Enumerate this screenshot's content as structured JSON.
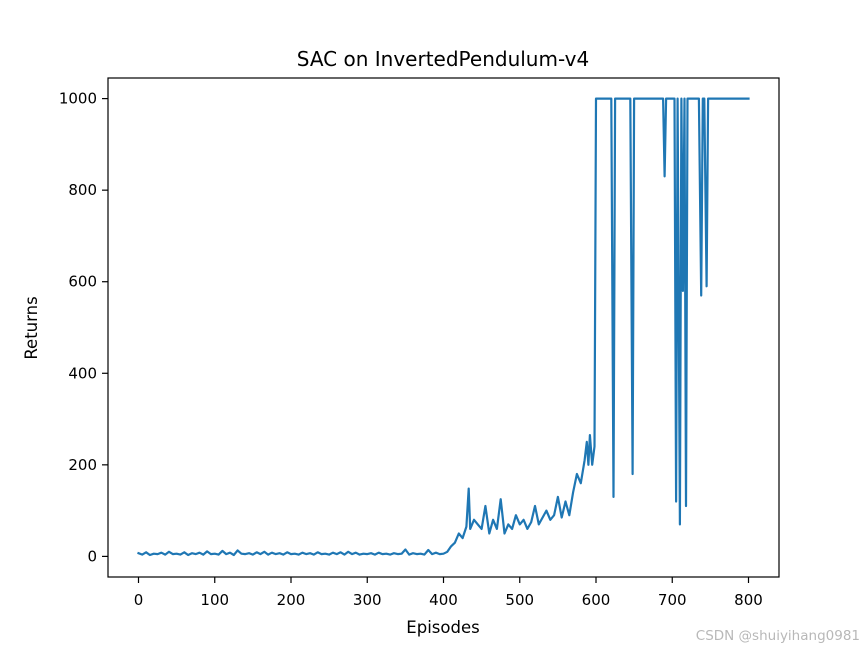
{
  "chart_data": {
    "type": "line",
    "title": "SAC on InvertedPendulum-v4",
    "xlabel": "Episodes",
    "ylabel": "Returns",
    "xlim": [
      -40,
      840
    ],
    "ylim": [
      -45,
      1045
    ],
    "xticks": [
      0,
      100,
      200,
      300,
      400,
      500,
      600,
      700,
      800
    ],
    "yticks": [
      0,
      200,
      400,
      600,
      800,
      1000
    ],
    "grid": false,
    "legend": null,
    "line_color": "#1f77b4",
    "series": [
      {
        "x": [
          0,
          5,
          10,
          15,
          20,
          25,
          30,
          35,
          40,
          45,
          50,
          55,
          60,
          65,
          70,
          75,
          80,
          85,
          90,
          95,
          100,
          105,
          110,
          115,
          120,
          125,
          130,
          135,
          140,
          145,
          150,
          155,
          160,
          165,
          170,
          175,
          180,
          185,
          190,
          195,
          200,
          205,
          210,
          215,
          220,
          225,
          230,
          235,
          240,
          245,
          250,
          255,
          260,
          265,
          270,
          275,
          280,
          285,
          290,
          295,
          300,
          305,
          310,
          315,
          320,
          325,
          330,
          335,
          340,
          345,
          350,
          355,
          360,
          365,
          370,
          375,
          380,
          385,
          390,
          395,
          400,
          405,
          410,
          415,
          420,
          425,
          430,
          433,
          435,
          440,
          445,
          450,
          455,
          460,
          465,
          470,
          475,
          480,
          485,
          490,
          495,
          500,
          505,
          510,
          515,
          520,
          525,
          530,
          535,
          540,
          545,
          550,
          555,
          560,
          565,
          570,
          575,
          580,
          585,
          588,
          590,
          592,
          595,
          598,
          600,
          610,
          620,
          623,
          625,
          627,
          640,
          645,
          648,
          650,
          660,
          670,
          680,
          688,
          690,
          692,
          700,
          703,
          705,
          707,
          710,
          712,
          714,
          716,
          718,
          720,
          722,
          725,
          730,
          735,
          738,
          740,
          742,
          745,
          747,
          750,
          760,
          770,
          780,
          790,
          800
        ],
        "y": [
          7,
          4,
          9,
          3,
          6,
          5,
          8,
          4,
          10,
          5,
          6,
          4,
          9,
          3,
          7,
          5,
          8,
          4,
          11,
          5,
          6,
          4,
          12,
          5,
          8,
          3,
          13,
          6,
          5,
          7,
          4,
          9,
          5,
          10,
          4,
          8,
          5,
          7,
          4,
          9,
          5,
          6,
          4,
          8,
          5,
          7,
          4,
          9,
          5,
          6,
          4,
          8,
          5,
          9,
          4,
          10,
          5,
          8,
          4,
          6,
          5,
          7,
          4,
          8,
          5,
          6,
          4,
          7,
          5,
          6,
          15,
          4,
          7,
          5,
          6,
          4,
          14,
          5,
          8,
          5,
          6,
          10,
          22,
          30,
          50,
          40,
          65,
          148,
          60,
          80,
          70,
          60,
          110,
          50,
          80,
          60,
          125,
          50,
          70,
          60,
          90,
          70,
          80,
          60,
          75,
          110,
          70,
          85,
          100,
          80,
          90,
          130,
          85,
          120,
          90,
          140,
          180,
          160,
          210,
          250,
          200,
          265,
          200,
          240,
          1000,
          1000,
          1000,
          130,
          1000,
          1000,
          1000,
          1000,
          180,
          1000,
          1000,
          1000,
          1000,
          1000,
          830,
          1000,
          1000,
          1000,
          120,
          1000,
          70,
          1000,
          580,
          1000,
          110,
          1000,
          1000,
          1000,
          1000,
          1000,
          570,
          1000,
          1000,
          590,
          1000,
          1000,
          1000,
          1000,
          1000,
          1000,
          1000
        ]
      }
    ]
  },
  "watermark": "CSDN @shuiyihang0981"
}
